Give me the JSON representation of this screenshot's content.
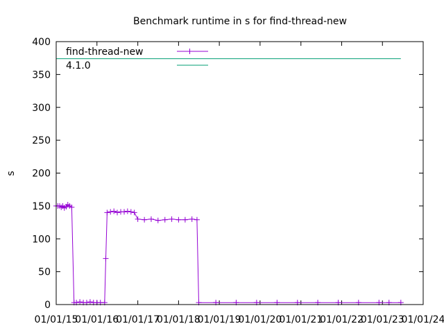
{
  "chart_data": {
    "type": "line",
    "title": "Benchmark runtime in s for find-thread-new",
    "xlabel": "",
    "ylabel": "s",
    "ylim": [
      0,
      400
    ],
    "y_ticks": [
      0,
      50,
      100,
      150,
      200,
      250,
      300,
      350,
      400
    ],
    "x_ticks": [
      "01/01/15",
      "01/01/16",
      "01/01/17",
      "01/01/18",
      "01/01/19",
      "01/01/20",
      "01/01/21",
      "01/01/22",
      "01/01/23",
      "01/01/24"
    ],
    "xlim": [
      "01/01/15",
      "01/01/24"
    ],
    "grid": false,
    "legend_position": "top-left",
    "series": [
      {
        "name": "find-thread-new",
        "color": "#9400d3",
        "marker": "plus",
        "points": [
          [
            "2015-01-01",
            150
          ],
          [
            "2015-01-15",
            150
          ],
          [
            "2015-02-01",
            150
          ],
          [
            "2015-02-15",
            148
          ],
          [
            "2015-03-01",
            150
          ],
          [
            "2015-03-15",
            147
          ],
          [
            "2015-04-01",
            149
          ],
          [
            "2015-04-15",
            152
          ],
          [
            "2015-05-01",
            150
          ],
          [
            "2015-05-20",
            148
          ],
          [
            "2015-06-10",
            3
          ],
          [
            "2015-07-01",
            3
          ],
          [
            "2015-08-01",
            4
          ],
          [
            "2015-09-01",
            3
          ],
          [
            "2015-10-01",
            3
          ],
          [
            "2015-11-01",
            4
          ],
          [
            "2015-12-01",
            3
          ],
          [
            "2016-01-01",
            3
          ],
          [
            "2016-02-01",
            3
          ],
          [
            "2016-03-10",
            3
          ],
          [
            "2016-03-20",
            70
          ],
          [
            "2016-04-01",
            140
          ],
          [
            "2016-05-01",
            141
          ],
          [
            "2016-06-01",
            142
          ],
          [
            "2016-07-01",
            140
          ],
          [
            "2016-08-01",
            141
          ],
          [
            "2016-09-01",
            141
          ],
          [
            "2016-10-01",
            142
          ],
          [
            "2016-11-01",
            141
          ],
          [
            "2016-12-01",
            140
          ],
          [
            "2017-01-01",
            130
          ],
          [
            "2017-03-01",
            129
          ],
          [
            "2017-05-01",
            130
          ],
          [
            "2017-07-01",
            128
          ],
          [
            "2017-09-01",
            129
          ],
          [
            "2017-11-01",
            130
          ],
          [
            "2018-01-01",
            129
          ],
          [
            "2018-03-01",
            129
          ],
          [
            "2018-05-01",
            130
          ],
          [
            "2018-06-15",
            129
          ],
          [
            "2018-07-01",
            3
          ],
          [
            "2018-12-01",
            3
          ],
          [
            "2019-06-01",
            3
          ],
          [
            "2019-12-01",
            3
          ],
          [
            "2020-06-01",
            3
          ],
          [
            "2020-12-01",
            3
          ],
          [
            "2021-06-01",
            3
          ],
          [
            "2021-12-01",
            3
          ],
          [
            "2022-06-01",
            3
          ],
          [
            "2022-12-01",
            3
          ],
          [
            "2023-03-01",
            3
          ],
          [
            "2023-06-15",
            3
          ]
        ]
      },
      {
        "name": "4.1.0",
        "color": "#009e73",
        "marker": "none",
        "points": [
          [
            "2015-01-01",
            374
          ],
          [
            "2023-06-15",
            374
          ]
        ]
      }
    ]
  }
}
